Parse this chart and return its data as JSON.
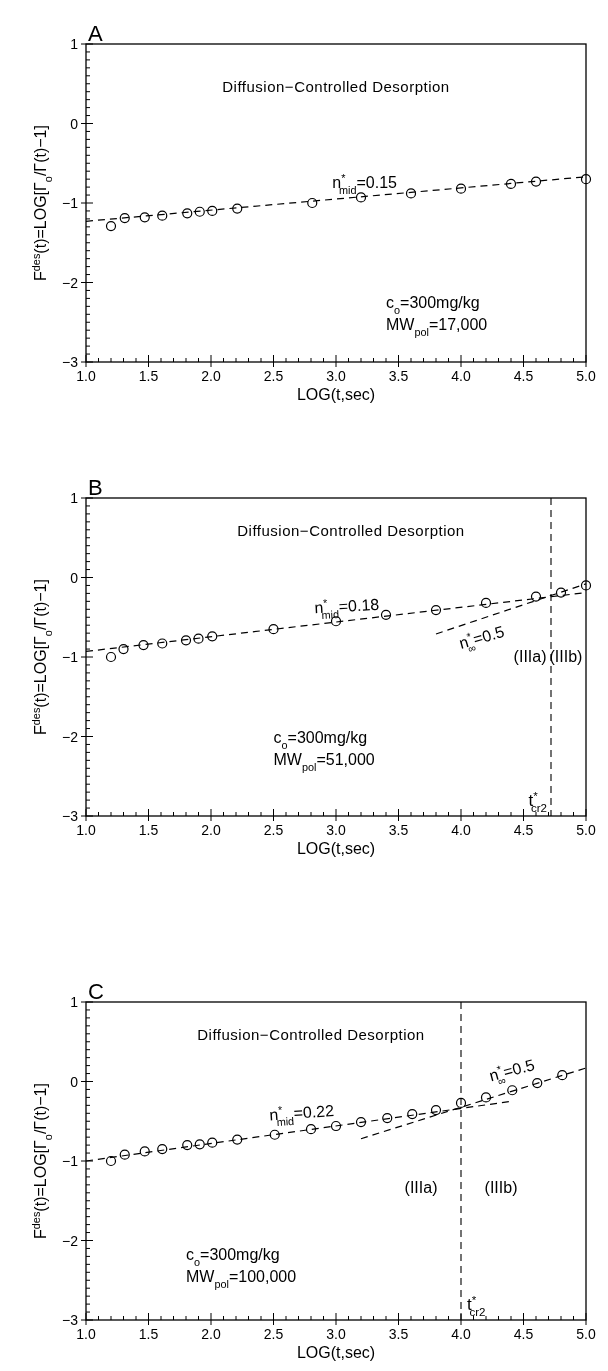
{
  "chart_data": [
    {
      "type": "scatter",
      "title": "A",
      "subtitle": "Diffusion−Controlled Desorption",
      "xlabel": "LOG(t,sec)",
      "ylabel": "F$^{des}$(t)=LOG[Γ$_{o}$/Γ(t)−1]",
      "xlim": [
        1,
        5
      ],
      "ylim": [
        -3,
        1
      ],
      "line_style": "dashed",
      "xticks": [
        {
          "value": 1,
          "label": "1.0"
        },
        {
          "value": 1.1,
          "label": null
        },
        {
          "value": 1.2,
          "label": null
        },
        {
          "value": 1.3,
          "label": null
        },
        {
          "value": 1.4,
          "label": null
        },
        {
          "value": 1.5,
          "label": "1.5"
        },
        {
          "value": 1.6,
          "label": null
        },
        {
          "value": 1.7,
          "label": null
        },
        {
          "value": 1.8,
          "label": null
        },
        {
          "value": 1.9,
          "label": null
        },
        {
          "value": 2,
          "label": "2.0"
        },
        {
          "value": 2.1,
          "label": null
        },
        {
          "value": 2.2,
          "label": null
        },
        {
          "value": 2.3,
          "label": null
        },
        {
          "value": 2.4,
          "label": null
        },
        {
          "value": 2.5,
          "label": "2.5"
        },
        {
          "value": 2.6,
          "label": null
        },
        {
          "value": 2.7,
          "label": null
        },
        {
          "value": 2.8,
          "label": null
        },
        {
          "value": 2.9,
          "label": null
        },
        {
          "value": 3,
          "label": "3.0"
        },
        {
          "value": 3.1,
          "label": null
        },
        {
          "value": 3.2,
          "label": null
        },
        {
          "value": 3.3,
          "label": null
        },
        {
          "value": 3.4,
          "label": null
        },
        {
          "value": 3.5,
          "label": "3.5"
        },
        {
          "value": 3.6,
          "label": null
        },
        {
          "value": 3.7,
          "label": null
        },
        {
          "value": 3.8,
          "label": null
        },
        {
          "value": 3.9,
          "label": null
        },
        {
          "value": 4,
          "label": "4.0"
        },
        {
          "value": 4.1,
          "label": null
        },
        {
          "value": 4.2,
          "label": null
        },
        {
          "value": 4.3,
          "label": null
        },
        {
          "value": 4.4,
          "label": null
        },
        {
          "value": 4.5,
          "label": "4.5"
        },
        {
          "value": 4.6,
          "label": null
        },
        {
          "value": 4.7,
          "label": null
        },
        {
          "value": 4.8,
          "label": null
        },
        {
          "value": 4.9,
          "label": null
        },
        {
          "value": 5,
          "label": "5.0"
        }
      ],
      "yticks": [
        {
          "value": -3,
          "label": "−3"
        },
        {
          "value": -2.9,
          "label": null
        },
        {
          "value": -2.8,
          "label": null
        },
        {
          "value": -2.7,
          "label": null
        },
        {
          "value": -2.6,
          "label": null
        },
        {
          "value": -2.5,
          "label": null
        },
        {
          "value": -2.4,
          "label": null
        },
        {
          "value": -2.3,
          "label": null
        },
        {
          "value": -2.2,
          "label": null
        },
        {
          "value": -2.1,
          "label": null
        },
        {
          "value": -2,
          "label": "−2"
        },
        {
          "value": -1.9,
          "label": null
        },
        {
          "value": -1.8,
          "label": null
        },
        {
          "value": -1.7,
          "label": null
        },
        {
          "value": -1.6,
          "label": null
        },
        {
          "value": -1.5,
          "label": null
        },
        {
          "value": -1.4,
          "label": null
        },
        {
          "value": -1.3,
          "label": null
        },
        {
          "value": -1.2,
          "label": null
        },
        {
          "value": -1.1,
          "label": null
        },
        {
          "value": -1,
          "label": "−1"
        },
        {
          "value": -0.9,
          "label": null
        },
        {
          "value": -0.8,
          "label": null
        },
        {
          "value": -0.7,
          "label": null
        },
        {
          "value": -0.6,
          "label": null
        },
        {
          "value": -0.5,
          "label": null
        },
        {
          "value": -0.4,
          "label": null
        },
        {
          "value": -0.3,
          "label": null
        },
        {
          "value": -0.2,
          "label": null
        },
        {
          "value": -0.1,
          "label": null
        },
        {
          "value": 0,
          "label": "0"
        },
        {
          "value": 0.1,
          "label": null
        },
        {
          "value": 0.2,
          "label": null
        },
        {
          "value": 0.3,
          "label": null
        },
        {
          "value": 0.4,
          "label": null
        },
        {
          "value": 0.5,
          "label": null
        },
        {
          "value": 0.6,
          "label": null
        },
        {
          "value": 0.7,
          "label": null
        },
        {
          "value": 0.8,
          "label": null
        },
        {
          "value": 0.9,
          "label": null
        },
        {
          "value": 1,
          "label": "1"
        }
      ],
      "series": [
        {
          "marker": "circle",
          "color": "#000000",
          "x": [
            1.2,
            1.31,
            1.47,
            1.61,
            1.81,
            1.91,
            2.01,
            2.21,
            2.81,
            3.2,
            3.6,
            4.0,
            4.4,
            4.6,
            5.0
          ],
          "values": [
            -1.29,
            -1.19,
            -1.18,
            -1.16,
            -1.13,
            -1.11,
            -1.1,
            -1.07,
            -1.0,
            -0.93,
            -0.88,
            -0.82,
            -0.76,
            -0.73,
            -0.7
          ]
        },
        {
          "type": "line",
          "color": "#000000",
          "x": [
            1,
            5
          ],
          "values": [
            -1.23,
            -0.67
          ]
        }
      ],
      "annotations": [
        "n$^{*}$$_{mid}$=0.15",
        "c$_{o}$=300mg/kg",
        "MW$_{pol}$=17,000"
      ]
    },
    {
      "type": "scatter",
      "title": "B",
      "subtitle": "Diffusion−Controlled Desorption",
      "xlabel": "LOG(t,sec)",
      "ylabel": "F$^{des}$(t)=LOG[Γ$_{o}$/Γ(t)−1]",
      "xlim": [
        1,
        5
      ],
      "ylim": [
        -3,
        1
      ],
      "line_style": "dashed",
      "xticks": [
        {
          "value": 1,
          "label": "1.0"
        },
        {
          "value": 1.1,
          "label": null
        },
        {
          "value": 1.2,
          "label": null
        },
        {
          "value": 1.3,
          "label": null
        },
        {
          "value": 1.4,
          "label": null
        },
        {
          "value": 1.5,
          "label": "1.5"
        },
        {
          "value": 1.6,
          "label": null
        },
        {
          "value": 1.7,
          "label": null
        },
        {
          "value": 1.8,
          "label": null
        },
        {
          "value": 1.9,
          "label": null
        },
        {
          "value": 2,
          "label": "2.0"
        },
        {
          "value": 2.1,
          "label": null
        },
        {
          "value": 2.2,
          "label": null
        },
        {
          "value": 2.3,
          "label": null
        },
        {
          "value": 2.4,
          "label": null
        },
        {
          "value": 2.5,
          "label": "2.5"
        },
        {
          "value": 2.6,
          "label": null
        },
        {
          "value": 2.7,
          "label": null
        },
        {
          "value": 2.8,
          "label": null
        },
        {
          "value": 2.9,
          "label": null
        },
        {
          "value": 3,
          "label": "3.0"
        },
        {
          "value": 3.1,
          "label": null
        },
        {
          "value": 3.2,
          "label": null
        },
        {
          "value": 3.3,
          "label": null
        },
        {
          "value": 3.4,
          "label": null
        },
        {
          "value": 3.5,
          "label": "3.5"
        },
        {
          "value": 3.6,
          "label": null
        },
        {
          "value": 3.7,
          "label": null
        },
        {
          "value": 3.8,
          "label": null
        },
        {
          "value": 3.9,
          "label": null
        },
        {
          "value": 4,
          "label": "4.0"
        },
        {
          "value": 4.1,
          "label": null
        },
        {
          "value": 4.2,
          "label": null
        },
        {
          "value": 4.3,
          "label": null
        },
        {
          "value": 4.4,
          "label": null
        },
        {
          "value": 4.5,
          "label": "4.5"
        },
        {
          "value": 4.6,
          "label": null
        },
        {
          "value": 4.7,
          "label": null
        },
        {
          "value": 4.8,
          "label": null
        },
        {
          "value": 4.9,
          "label": null
        },
        {
          "value": 5,
          "label": "5.0"
        }
      ],
      "yticks": [
        {
          "value": -3,
          "label": "−3"
        },
        {
          "value": -2.9,
          "label": null
        },
        {
          "value": -2.8,
          "label": null
        },
        {
          "value": -2.7,
          "label": null
        },
        {
          "value": -2.6,
          "label": null
        },
        {
          "value": -2.5,
          "label": null
        },
        {
          "value": -2.4,
          "label": null
        },
        {
          "value": -2.3,
          "label": null
        },
        {
          "value": -2.2,
          "label": null
        },
        {
          "value": -2.1,
          "label": null
        },
        {
          "value": -2,
          "label": "−2"
        },
        {
          "value": -1.9,
          "label": null
        },
        {
          "value": -1.8,
          "label": null
        },
        {
          "value": -1.7,
          "label": null
        },
        {
          "value": -1.6,
          "label": null
        },
        {
          "value": -1.5,
          "label": null
        },
        {
          "value": -1.4,
          "label": null
        },
        {
          "value": -1.3,
          "label": null
        },
        {
          "value": -1.2,
          "label": null
        },
        {
          "value": -1.1,
          "label": null
        },
        {
          "value": -1,
          "label": "−1"
        },
        {
          "value": -0.9,
          "label": null
        },
        {
          "value": -0.8,
          "label": null
        },
        {
          "value": -0.7,
          "label": null
        },
        {
          "value": -0.6,
          "label": null
        },
        {
          "value": -0.5,
          "label": null
        },
        {
          "value": -0.4,
          "label": null
        },
        {
          "value": -0.3,
          "label": null
        },
        {
          "value": -0.2,
          "label": null
        },
        {
          "value": -0.1,
          "label": null
        },
        {
          "value": 0,
          "label": "0"
        },
        {
          "value": 0.1,
          "label": null
        },
        {
          "value": 0.2,
          "label": null
        },
        {
          "value": 0.3,
          "label": null
        },
        {
          "value": 0.4,
          "label": null
        },
        {
          "value": 0.5,
          "label": null
        },
        {
          "value": 0.6,
          "label": null
        },
        {
          "value": 0.7,
          "label": null
        },
        {
          "value": 0.8,
          "label": null
        },
        {
          "value": 0.9,
          "label": null
        },
        {
          "value": 1,
          "label": "1"
        }
      ],
      "series": [
        {
          "marker": "circle",
          "color": "#000000",
          "x": [
            1.2,
            1.3,
            1.46,
            1.61,
            1.8,
            1.9,
            2.01,
            2.5,
            3.0,
            3.4,
            3.8,
            4.2,
            4.6,
            4.8,
            5.0
          ],
          "values": [
            -1.0,
            -0.9,
            -0.85,
            -0.83,
            -0.79,
            -0.77,
            -0.74,
            -0.65,
            -0.55,
            -0.47,
            -0.41,
            -0.32,
            -0.24,
            -0.19,
            -0.1
          ]
        },
        {
          "type": "line",
          "color": "#000000",
          "x": [
            1,
            5
          ],
          "values": [
            -0.93,
            -0.19
          ]
        },
        {
          "type": "line",
          "color": "#000000",
          "x": [
            3.8,
            5
          ],
          "values": [
            -0.71,
            -0.08
          ]
        }
      ],
      "ref_lines": [
        {
          "axis": "x",
          "value": 4.72,
          "label": "t$^{*}$$_{cr2}$",
          "line_style": "dashed"
        }
      ],
      "annotations": [
        "n$^{*}$$_{mid}$=0.18",
        "n$^{*}$$_{∞}$=0.5",
        "c$_{o}$=300mg/kg",
        "MW$_{pol}$=51,000",
        "(IIIa)",
        "(IIIb)"
      ]
    },
    {
      "type": "scatter",
      "title": "C",
      "subtitle": "Diffusion−Controlled Desorption",
      "xlabel": "LOG(t,sec)",
      "ylabel": "F$^{des}$(t)=LOG[Γ$_{o}$/Γ(t)−1]",
      "xlim": [
        1,
        5
      ],
      "ylim": [
        -3,
        1
      ],
      "line_style": "dashed",
      "xticks": [
        {
          "value": 1,
          "label": "1.0"
        },
        {
          "value": 1.1,
          "label": null
        },
        {
          "value": 1.2,
          "label": null
        },
        {
          "value": 1.3,
          "label": null
        },
        {
          "value": 1.4,
          "label": null
        },
        {
          "value": 1.5,
          "label": "1.5"
        },
        {
          "value": 1.6,
          "label": null
        },
        {
          "value": 1.7,
          "label": null
        },
        {
          "value": 1.8,
          "label": null
        },
        {
          "value": 1.9,
          "label": null
        },
        {
          "value": 2,
          "label": "2.0"
        },
        {
          "value": 2.1,
          "label": null
        },
        {
          "value": 2.2,
          "label": null
        },
        {
          "value": 2.3,
          "label": null
        },
        {
          "value": 2.4,
          "label": null
        },
        {
          "value": 2.5,
          "label": "2.5"
        },
        {
          "value": 2.6,
          "label": null
        },
        {
          "value": 2.7,
          "label": null
        },
        {
          "value": 2.8,
          "label": null
        },
        {
          "value": 2.9,
          "label": null
        },
        {
          "value": 3,
          "label": "3.0"
        },
        {
          "value": 3.1,
          "label": null
        },
        {
          "value": 3.2,
          "label": null
        },
        {
          "value": 3.3,
          "label": null
        },
        {
          "value": 3.4,
          "label": null
        },
        {
          "value": 3.5,
          "label": "3.5"
        },
        {
          "value": 3.6,
          "label": null
        },
        {
          "value": 3.7,
          "label": null
        },
        {
          "value": 3.8,
          "label": null
        },
        {
          "value": 3.9,
          "label": null
        },
        {
          "value": 4,
          "label": "4.0"
        },
        {
          "value": 4.1,
          "label": null
        },
        {
          "value": 4.2,
          "label": null
        },
        {
          "value": 4.3,
          "label": null
        },
        {
          "value": 4.4,
          "label": null
        },
        {
          "value": 4.5,
          "label": "4.5"
        },
        {
          "value": 4.6,
          "label": null
        },
        {
          "value": 4.7,
          "label": null
        },
        {
          "value": 4.8,
          "label": null
        },
        {
          "value": 4.9,
          "label": null
        },
        {
          "value": 5,
          "label": "5.0"
        }
      ],
      "yticks": [
        {
          "value": -3,
          "label": "−3"
        },
        {
          "value": -2.9,
          "label": null
        },
        {
          "value": -2.8,
          "label": null
        },
        {
          "value": -2.7,
          "label": null
        },
        {
          "value": -2.6,
          "label": null
        },
        {
          "value": -2.5,
          "label": null
        },
        {
          "value": -2.4,
          "label": null
        },
        {
          "value": -2.3,
          "label": null
        },
        {
          "value": -2.2,
          "label": null
        },
        {
          "value": -2.1,
          "label": null
        },
        {
          "value": -2,
          "label": "−2"
        },
        {
          "value": -1.9,
          "label": null
        },
        {
          "value": -1.8,
          "label": null
        },
        {
          "value": -1.7,
          "label": null
        },
        {
          "value": -1.6,
          "label": null
        },
        {
          "value": -1.5,
          "label": null
        },
        {
          "value": -1.4,
          "label": null
        },
        {
          "value": -1.3,
          "label": null
        },
        {
          "value": -1.2,
          "label": null
        },
        {
          "value": -1.1,
          "label": null
        },
        {
          "value": -1,
          "label": "−1"
        },
        {
          "value": -0.9,
          "label": null
        },
        {
          "value": -0.8,
          "label": null
        },
        {
          "value": -0.7,
          "label": null
        },
        {
          "value": -0.6,
          "label": null
        },
        {
          "value": -0.5,
          "label": null
        },
        {
          "value": -0.4,
          "label": null
        },
        {
          "value": -0.3,
          "label": null
        },
        {
          "value": -0.2,
          "label": null
        },
        {
          "value": -0.1,
          "label": null
        },
        {
          "value": 0,
          "label": "0"
        },
        {
          "value": 0.1,
          "label": null
        },
        {
          "value": 0.2,
          "label": null
        },
        {
          "value": 0.3,
          "label": null
        },
        {
          "value": 0.4,
          "label": null
        },
        {
          "value": 0.5,
          "label": null
        },
        {
          "value": 0.6,
          "label": null
        },
        {
          "value": 0.7,
          "label": null
        },
        {
          "value": 0.8,
          "label": null
        },
        {
          "value": 0.9,
          "label": null
        },
        {
          "value": 1,
          "label": "1"
        }
      ],
      "series": [
        {
          "marker": "circle",
          "color": "#000000",
          "x": [
            1.2,
            1.31,
            1.47,
            1.61,
            1.81,
            1.91,
            2.01,
            2.21,
            2.51,
            2.8,
            3.0,
            3.2,
            3.41,
            3.61,
            3.8,
            4.0,
            4.2,
            4.41,
            4.61,
            4.81
          ],
          "values": [
            -1.0,
            -0.92,
            -0.88,
            -0.85,
            -0.8,
            -0.79,
            -0.77,
            -0.73,
            -0.67,
            -0.6,
            -0.56,
            -0.51,
            -0.46,
            -0.41,
            -0.36,
            -0.27,
            -0.2,
            -0.11,
            -0.02,
            0.08
          ]
        },
        {
          "type": "line",
          "color": "#000000",
          "x": [
            1,
            4.4
          ],
          "values": [
            -1.0,
            -0.25
          ]
        },
        {
          "type": "line",
          "color": "#000000",
          "x": [
            3.2,
            5
          ],
          "values": [
            -0.72,
            0.17
          ]
        }
      ],
      "ref_lines": [
        {
          "axis": "x",
          "value": 4.0,
          "label": "t$^{*}$$_{cr2}$",
          "line_style": "dashed"
        }
      ],
      "annotations": [
        "n$^{*}$$_{mid}$=0.22",
        "n$^{*}$$_{∞}$=0.5",
        "c$_{o}$=300mg/kg",
        "MW$_{pol}$=100,000",
        "(IIIa)",
        "(IIIb)"
      ]
    }
  ]
}
